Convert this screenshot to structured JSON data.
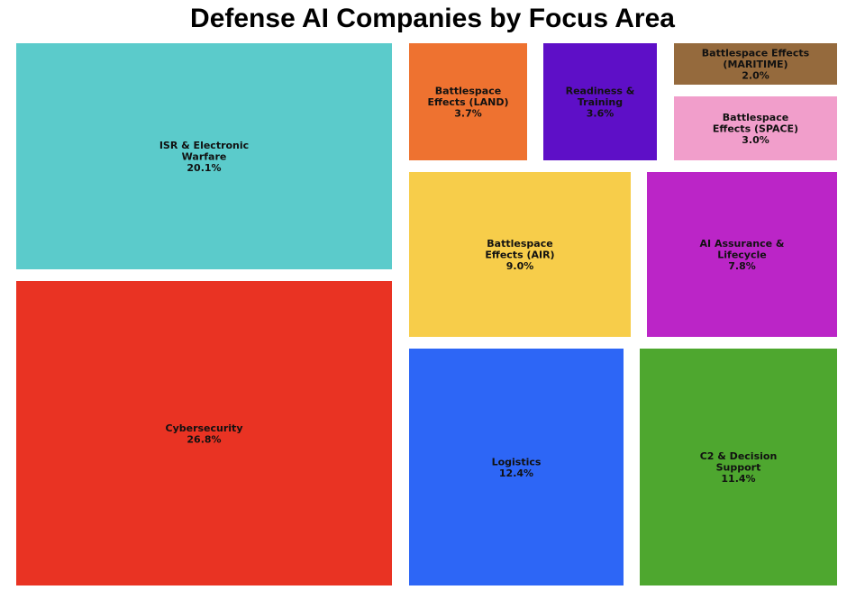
{
  "chart_data": {
    "type": "treemap",
    "title": "Defense AI Companies by Focus Area",
    "unit": "%",
    "items": [
      {
        "label": "Cybersecurity",
        "value": 26.8,
        "color": "#E93323"
      },
      {
        "label": "ISR & Electronic Warfare",
        "value": 20.1,
        "color": "#5BCBCB"
      },
      {
        "label": "Logistics",
        "value": 12.4,
        "color": "#2D66F6"
      },
      {
        "label": "C2 & Decision Support",
        "value": 11.4,
        "color": "#4EA72F"
      },
      {
        "label": "Battlespace Effects (AIR)",
        "value": 9.0,
        "color": "#F7CD4A"
      },
      {
        "label": "AI Assurance & Lifecycle",
        "value": 7.8,
        "color": "#BB25C7"
      },
      {
        "label": "Battlespace Effects (LAND)",
        "value": 3.7,
        "color": "#EE7230"
      },
      {
        "label": "Readiness & Training",
        "value": 3.6,
        "color": "#5E0FC7"
      },
      {
        "label": "Battlespace Effects (SPACE)",
        "value": 3.0,
        "color": "#F19ECB"
      },
      {
        "label": "Battlespace Effects (MARITIME)",
        "value": 2.0,
        "color": "#956A3D"
      }
    ]
  }
}
